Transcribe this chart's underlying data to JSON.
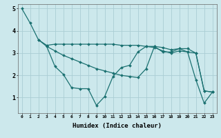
{
  "xlabel": "Humidex (Indice chaleur)",
  "background_color": "#cce8ec",
  "grid_color": "#aacdd4",
  "line_color": "#1a7070",
  "xlim": [
    -0.5,
    23.5
  ],
  "ylim": [
    0.3,
    5.2
  ],
  "yticks": [
    1,
    2,
    3,
    4,
    5
  ],
  "xticks": [
    0,
    1,
    2,
    3,
    4,
    5,
    6,
    7,
    8,
    9,
    10,
    11,
    12,
    13,
    14,
    15,
    16,
    17,
    18,
    19,
    20,
    21,
    22,
    23
  ],
  "line1": [
    [
      0,
      5.0
    ],
    [
      1,
      4.35
    ],
    [
      2,
      3.6
    ],
    [
      3,
      3.3
    ],
    [
      4,
      2.4
    ],
    [
      5,
      2.05
    ],
    [
      6,
      1.45
    ],
    [
      7,
      1.4
    ],
    [
      8,
      1.4
    ],
    [
      9,
      0.65
    ],
    [
      10,
      1.05
    ],
    [
      11,
      1.95
    ],
    [
      12,
      2.35
    ],
    [
      13,
      2.45
    ],
    [
      14,
      3.05
    ],
    [
      15,
      3.3
    ],
    [
      16,
      3.3
    ],
    [
      17,
      3.05
    ],
    [
      18,
      3.05
    ],
    [
      19,
      3.2
    ],
    [
      20,
      3.05
    ],
    [
      21,
      1.8
    ],
    [
      22,
      0.75
    ],
    [
      23,
      1.25
    ]
  ],
  "line2": [
    [
      2,
      3.6
    ],
    [
      3,
      3.35
    ],
    [
      4,
      3.4
    ],
    [
      5,
      3.4
    ],
    [
      6,
      3.4
    ],
    [
      7,
      3.4
    ],
    [
      8,
      3.4
    ],
    [
      9,
      3.4
    ],
    [
      10,
      3.4
    ],
    [
      11,
      3.4
    ],
    [
      12,
      3.35
    ],
    [
      13,
      3.35
    ],
    [
      14,
      3.35
    ],
    [
      15,
      3.3
    ],
    [
      16,
      3.25
    ],
    [
      17,
      3.1
    ],
    [
      18,
      3.0
    ],
    [
      19,
      3.1
    ],
    [
      20,
      3.05
    ],
    [
      21,
      3.0
    ],
    [
      22,
      1.3
    ],
    [
      23,
      1.25
    ]
  ],
  "line3": [
    [
      3,
      3.3
    ],
    [
      4,
      3.1
    ],
    [
      5,
      2.9
    ],
    [
      6,
      2.75
    ],
    [
      7,
      2.6
    ],
    [
      8,
      2.45
    ],
    [
      9,
      2.3
    ],
    [
      10,
      2.2
    ],
    [
      11,
      2.1
    ],
    [
      12,
      2.0
    ],
    [
      13,
      1.95
    ],
    [
      14,
      1.9
    ],
    [
      15,
      2.3
    ],
    [
      16,
      3.3
    ],
    [
      17,
      3.25
    ],
    [
      18,
      3.15
    ],
    [
      19,
      3.2
    ],
    [
      20,
      3.2
    ],
    [
      21,
      3.0
    ],
    [
      22,
      1.3
    ],
    [
      23,
      1.25
    ]
  ]
}
